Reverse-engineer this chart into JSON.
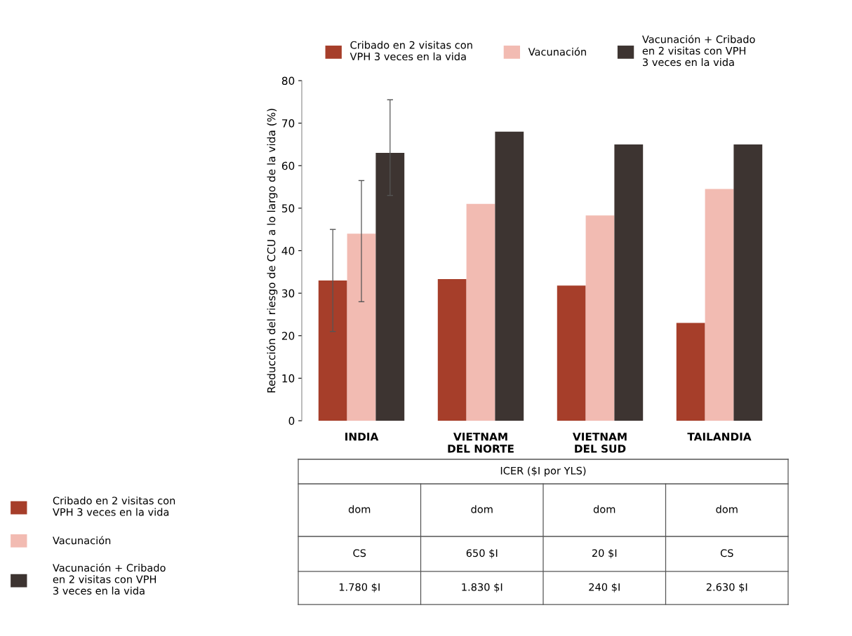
{
  "chart_data": {
    "type": "bar",
    "ylabel": "Reducción del riesgo de CCU a lo largo de la vida (%)",
    "categories": [
      "INDIA",
      "VIETNAM\nDEL NORTE",
      "VIETNAM\nDEL SUD",
      "TAILANDIA"
    ],
    "series": [
      {
        "name": "Cribado en 2 visitas con\nVPH 3 veces en la vida",
        "color": "#a63e2a",
        "values": [
          33,
          33.3,
          31.8,
          23
        ],
        "errors": [
          [
            21,
            45
          ],
          null,
          null,
          null
        ]
      },
      {
        "name": "Vacunación",
        "color": "#f2bbb2",
        "values": [
          44,
          51,
          48.3,
          54.5
        ],
        "errors": [
          [
            28,
            56.5
          ],
          null,
          null,
          null
        ]
      },
      {
        "name": "Vacunación + Cribado\nen 2 visitas con VPH\n3 veces en la vida",
        "color": "#3d3431",
        "values": [
          63,
          68,
          65,
          65
        ],
        "errors": [
          [
            53,
            75.5
          ],
          null,
          null,
          null
        ]
      }
    ],
    "ylim": [
      0,
      80
    ],
    "yticks": [
      0,
      10,
      20,
      30,
      40,
      50,
      60,
      70,
      80
    ],
    "grid": false,
    "legend": "top",
    "annotations": [
      "ICER ($I por YLS)",
      "dom",
      "dom",
      "dom",
      "dom",
      "CS",
      "650 $I",
      "20 $I",
      "CS",
      "1.780 $I",
      "1.830 $I",
      "240 $I",
      "2.630 $I"
    ]
  }
}
